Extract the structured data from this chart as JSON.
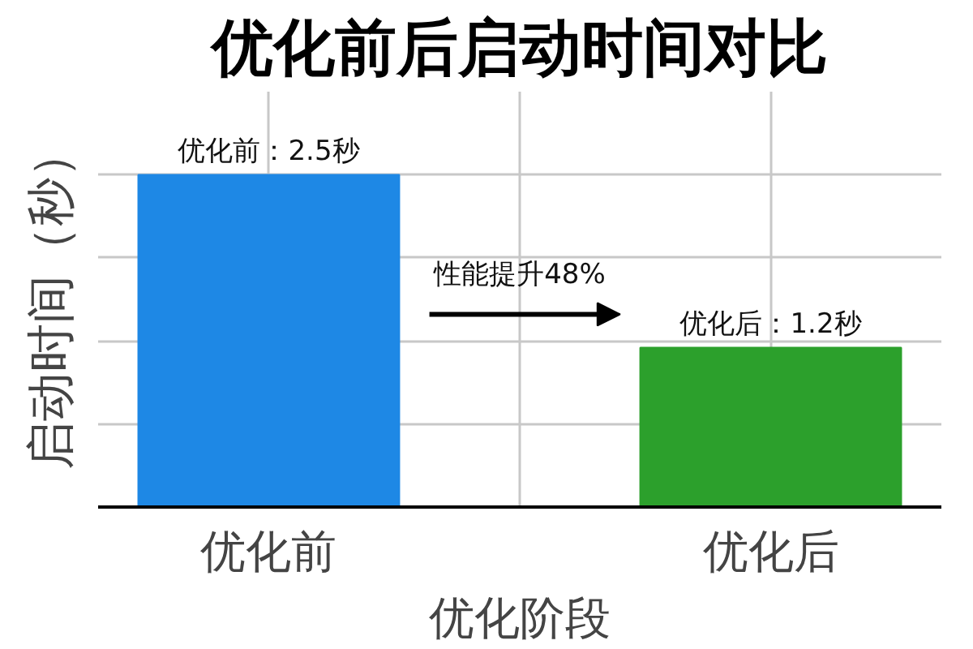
{
  "chart_data": {
    "type": "bar",
    "title": "优化前后启动时间对比",
    "xlabel": "优化阶段",
    "ylabel": "启动时间（秒）",
    "categories": [
      "优化前",
      "优化后"
    ],
    "values": [
      2.5,
      1.2
    ],
    "colors": [
      "#1e88e5",
      "#2ca02c"
    ],
    "value_labels": [
      "优化前：2.5秒",
      "优化后：1.2秒"
    ],
    "ylim": [
      0,
      3.125
    ],
    "yticks": [
      {
        "value": 0,
        "label": null
      },
      {
        "value": 0.625,
        "label": null
      },
      {
        "value": 1.25,
        "label": null
      },
      {
        "value": 1.875,
        "label": null
      },
      {
        "value": 2.5,
        "label": null
      }
    ],
    "tick_labels": "x",
    "grid": true,
    "annotations": [
      "性能提升48%"
    ]
  }
}
